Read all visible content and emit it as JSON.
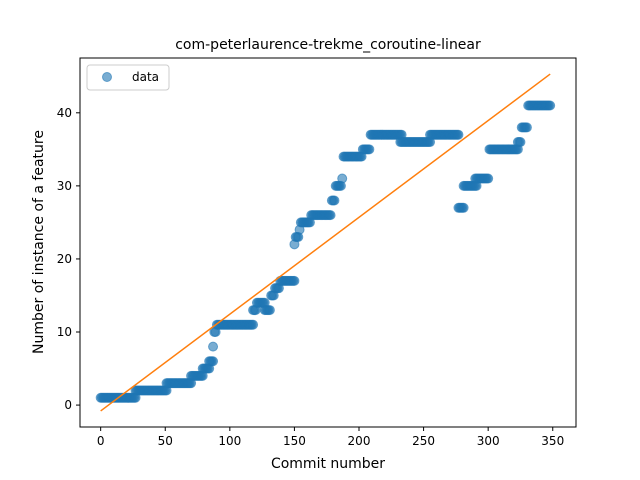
{
  "chart_data": {
    "type": "scatter",
    "title": "com-peterlaurence-trekme_coroutine-linear",
    "xlabel": "Commit number",
    "ylabel": "Number of instance of a feature",
    "xlim": [
      -16,
      368
    ],
    "ylim": [
      -3,
      47.5
    ],
    "xticks": [
      0,
      50,
      100,
      150,
      200,
      250,
      300,
      350
    ],
    "yticks": [
      0,
      10,
      20,
      30,
      40
    ],
    "legend": {
      "placement": "top-left",
      "entries": [
        "data"
      ]
    },
    "grid": false,
    "colors": {
      "data": "#1f77b4",
      "fit": "#ff7f0e"
    },
    "fit_line": {
      "x": [
        0,
        348
      ],
      "y": [
        -0.8,
        45.3
      ]
    },
    "series": [
      {
        "name": "data",
        "step_segments": [
          {
            "x_start": 0,
            "x_end": 27,
            "y": 1
          },
          {
            "x_start": 27,
            "x_end": 51,
            "y": 2
          },
          {
            "x_start": 51,
            "x_end": 70,
            "y": 3
          },
          {
            "x_start": 70,
            "x_end": 79,
            "y": 4
          },
          {
            "x_start": 79,
            "x_end": 84,
            "y": 5
          },
          {
            "x_start": 84,
            "x_end": 87,
            "y": 6
          },
          {
            "x_start": 87,
            "x_end": 87,
            "y": 8
          },
          {
            "x_start": 88,
            "x_end": 89,
            "y": 10
          },
          {
            "x_start": 90,
            "x_end": 118,
            "y": 11
          },
          {
            "x_start": 118,
            "x_end": 120,
            "y": 13
          },
          {
            "x_start": 121,
            "x_end": 127,
            "y": 14
          },
          {
            "x_start": 127,
            "x_end": 131,
            "y": 13
          },
          {
            "x_start": 132,
            "x_end": 134,
            "y": 15
          },
          {
            "x_start": 135,
            "x_end": 138,
            "y": 16
          },
          {
            "x_start": 139,
            "x_end": 150,
            "y": 17
          },
          {
            "x_start": 150,
            "x_end": 150,
            "y": 22
          },
          {
            "x_start": 151,
            "x_end": 153,
            "y": 23
          },
          {
            "x_start": 154,
            "x_end": 154,
            "y": 24
          },
          {
            "x_start": 155,
            "x_end": 162,
            "y": 25
          },
          {
            "x_start": 163,
            "x_end": 178,
            "y": 26
          },
          {
            "x_start": 179,
            "x_end": 181,
            "y": 28
          },
          {
            "x_start": 182,
            "x_end": 186,
            "y": 30
          },
          {
            "x_start": 187,
            "x_end": 187,
            "y": 31
          },
          {
            "x_start": 188,
            "x_end": 202,
            "y": 34
          },
          {
            "x_start": 203,
            "x_end": 208,
            "y": 35
          },
          {
            "x_start": 209,
            "x_end": 233,
            "y": 37
          },
          {
            "x_start": 232,
            "x_end": 255,
            "y": 36
          },
          {
            "x_start": 255,
            "x_end": 277,
            "y": 37
          },
          {
            "x_start": 277,
            "x_end": 281,
            "y": 27
          },
          {
            "x_start": 281,
            "x_end": 291,
            "y": 30
          },
          {
            "x_start": 290,
            "x_end": 300,
            "y": 31
          },
          {
            "x_start": 301,
            "x_end": 323,
            "y": 35
          },
          {
            "x_start": 323,
            "x_end": 325,
            "y": 36
          },
          {
            "x_start": 326,
            "x_end": 330,
            "y": 38
          },
          {
            "x_start": 331,
            "x_end": 348,
            "y": 41
          }
        ]
      }
    ]
  }
}
